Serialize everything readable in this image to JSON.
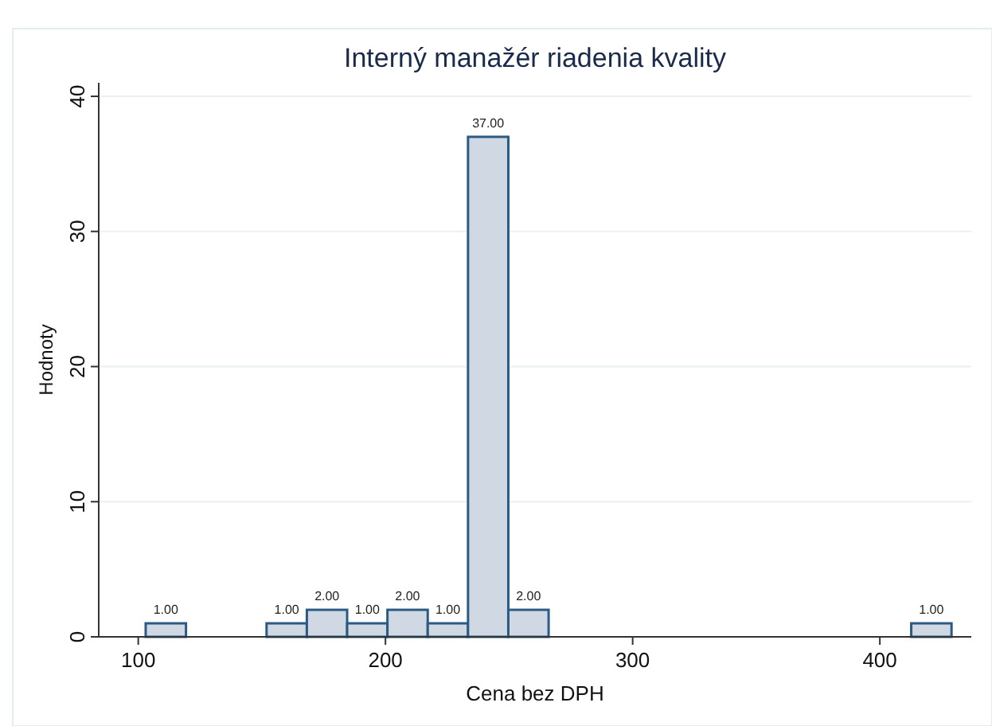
{
  "chart_data": {
    "type": "histogram",
    "title": "Interný manažér riadenia kvality",
    "xlabel": "Cena bez DPH",
    "ylabel": "Hodnoty",
    "bins": [
      103,
      119.3,
      135.6,
      151.9,
      168.2,
      184.5,
      200.8,
      217.1,
      233.4,
      249.7,
      266,
      282.3,
      298.6,
      314.9,
      331.2,
      347.5,
      363.8,
      380.1,
      396.4,
      412.7,
      429
    ],
    "values": [
      1,
      0,
      0,
      1,
      2,
      1,
      2,
      1,
      37,
      2,
      0,
      0,
      0,
      0,
      0,
      0,
      0,
      0,
      0,
      1
    ],
    "value_labels": [
      "1.00",
      null,
      null,
      "1.00",
      "2.00",
      "1.00",
      "2.00",
      "1.00",
      "37.00",
      "2.00",
      null,
      null,
      null,
      null,
      null,
      null,
      null,
      null,
      null,
      "1.00"
    ],
    "color": "#d0d9e3",
    "xlim": [
      84,
      437
    ],
    "xticks": [
      100,
      200,
      300,
      400
    ],
    "ylim": [
      0,
      41
    ],
    "yticks": [
      0,
      10,
      20,
      30,
      40
    ],
    "grid": "y"
  }
}
